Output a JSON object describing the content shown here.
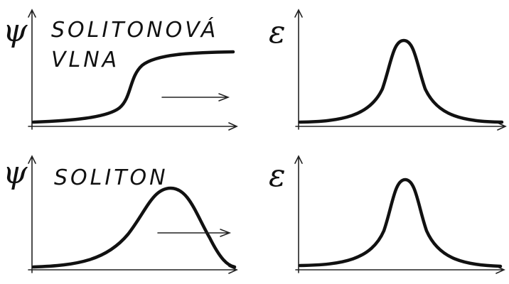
{
  "panels": [
    {
      "symbol": "ψ",
      "caption": [
        "SOLITONOVÁ",
        "VLNA"
      ]
    },
    {
      "symbol": "ε"
    },
    {
      "symbol": "ψ",
      "caption": [
        "SOLITON"
      ]
    },
    {
      "symbol": "ε"
    }
  ]
}
